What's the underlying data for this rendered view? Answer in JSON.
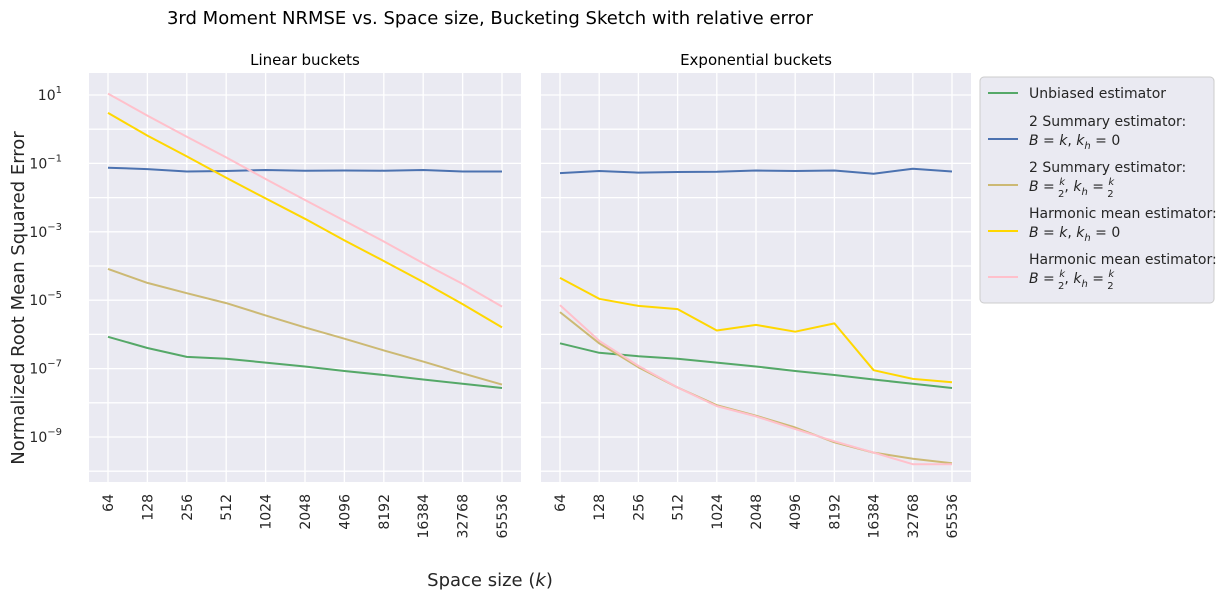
{
  "chart_data": {
    "type": "line",
    "title": "3rd Moment NRMSE vs. Space size, Bucketing Sketch with relative error",
    "xlabel": "Space size (k)",
    "xlabel_main": "Space size (",
    "xlabel_var": "k",
    "xlabel_close": ")",
    "ylabel": "Normalized Root Mean Squared Error",
    "yscale": "log",
    "ylim": [
      3e-11,
      30
    ],
    "yticks": [
      {
        "value": 10,
        "base": "10",
        "exp": "1"
      },
      {
        "value": 0.1,
        "base": "10",
        "exp": "−1"
      },
      {
        "value": 0.001,
        "base": "10",
        "exp": "−3"
      },
      {
        "value": 1e-05,
        "base": "10",
        "exp": "−5"
      },
      {
        "value": 1e-07,
        "base": "10",
        "exp": "−7"
      },
      {
        "value": 1e-09,
        "base": "10",
        "exp": "−9"
      }
    ],
    "x": [
      "64",
      "128",
      "256",
      "512",
      "1024",
      "2048",
      "4096",
      "8192",
      "16384",
      "32768",
      "65536"
    ],
    "grid": true,
    "legend_position": "outside-right",
    "legend": [
      {
        "lines": [
          "Unbiased estimator"
        ],
        "color": "#55a868"
      },
      {
        "lines": [
          "2 Summary estimator:",
          "B = k, k_h = 0"
        ],
        "color": "#4c72b0"
      },
      {
        "lines": [
          "2 Summary estimator:",
          "B = k/2, k_h = k/2"
        ],
        "color": "#ccb974"
      },
      {
        "lines": [
          "Harmonic mean estimator:",
          "B = k, k_h = 0"
        ],
        "color": "#ffd700"
      },
      {
        "lines": [
          "Harmonic mean estimator:",
          "B = k/2, k_h = k/2"
        ],
        "color": "#ffc0cb"
      }
    ],
    "panels": [
      {
        "title": "Linear buckets",
        "series": [
          {
            "color": "#55a868",
            "values": [
              8.5e-07,
              4e-07,
              2.2e-07,
              1.95e-07,
              1.5e-07,
              1.15e-07,
              8.5e-08,
              6.5e-08,
              4.8e-08,
              3.6e-08,
              2.7e-08
            ]
          },
          {
            "color": "#4c72b0",
            "values": [
              0.075,
              0.068,
              0.058,
              0.06,
              0.064,
              0.061,
              0.062,
              0.061,
              0.064,
              0.058,
              0.058
            ]
          },
          {
            "color": "#ccb974",
            "values": [
              8.2e-05,
              3.2e-05,
              1.6e-05,
              8.2e-06,
              3.6e-06,
              1.6e-06,
              7.5e-07,
              3.4e-07,
              1.6e-07,
              7.3e-08,
              3.4e-08
            ]
          },
          {
            "color": "#ffd700",
            "values": [
              3,
              0.65,
              0.16,
              0.038,
              0.0095,
              0.0024,
              0.00056,
              0.00014,
              3.4e-05,
              7.7e-06,
              1.6e-06
            ]
          },
          {
            "color": "#ffc0cb",
            "values": [
              11,
              2.5,
              0.6,
              0.15,
              0.035,
              0.0085,
              0.0021,
              0.00052,
              0.00012,
              3e-05,
              6.5e-06
            ]
          }
        ]
      },
      {
        "title": "Exponential buckets",
        "series": [
          {
            "color": "#55a868",
            "values": [
              5.5e-07,
              2.9e-07,
              2.3e-07,
              1.95e-07,
              1.5e-07,
              1.15e-07,
              8.5e-08,
              6.5e-08,
              4.8e-08,
              3.6e-08,
              2.7e-08
            ]
          },
          {
            "color": "#4c72b0",
            "values": [
              0.052,
              0.06,
              0.054,
              0.056,
              0.057,
              0.062,
              0.06,
              0.062,
              0.05,
              0.07,
              0.058
            ]
          },
          {
            "color": "#ccb974",
            "values": [
              4.5e-06,
              5.5e-07,
              1.1e-07,
              2.8e-08,
              8.5e-09,
              4.2e-09,
              1.9e-09,
              7e-10,
              3.5e-10,
              2.3e-10,
              1.7e-10
            ]
          },
          {
            "color": "#ffd700",
            "values": [
              4.5e-05,
              1.1e-05,
              6.8e-06,
              5.5e-06,
              1.3e-06,
              1.9e-06,
              1.2e-06,
              2.1e-06,
              9e-08,
              5e-08,
              4e-08
            ]
          },
          {
            "color": "#ffc0cb",
            "values": [
              7.2e-06,
              6.5e-07,
              1.2e-07,
              2.8e-08,
              8e-09,
              4e-09,
              1.7e-09,
              7.5e-10,
              3.5e-10,
              1.6e-10,
              1.6e-10
            ]
          }
        ]
      }
    ]
  }
}
